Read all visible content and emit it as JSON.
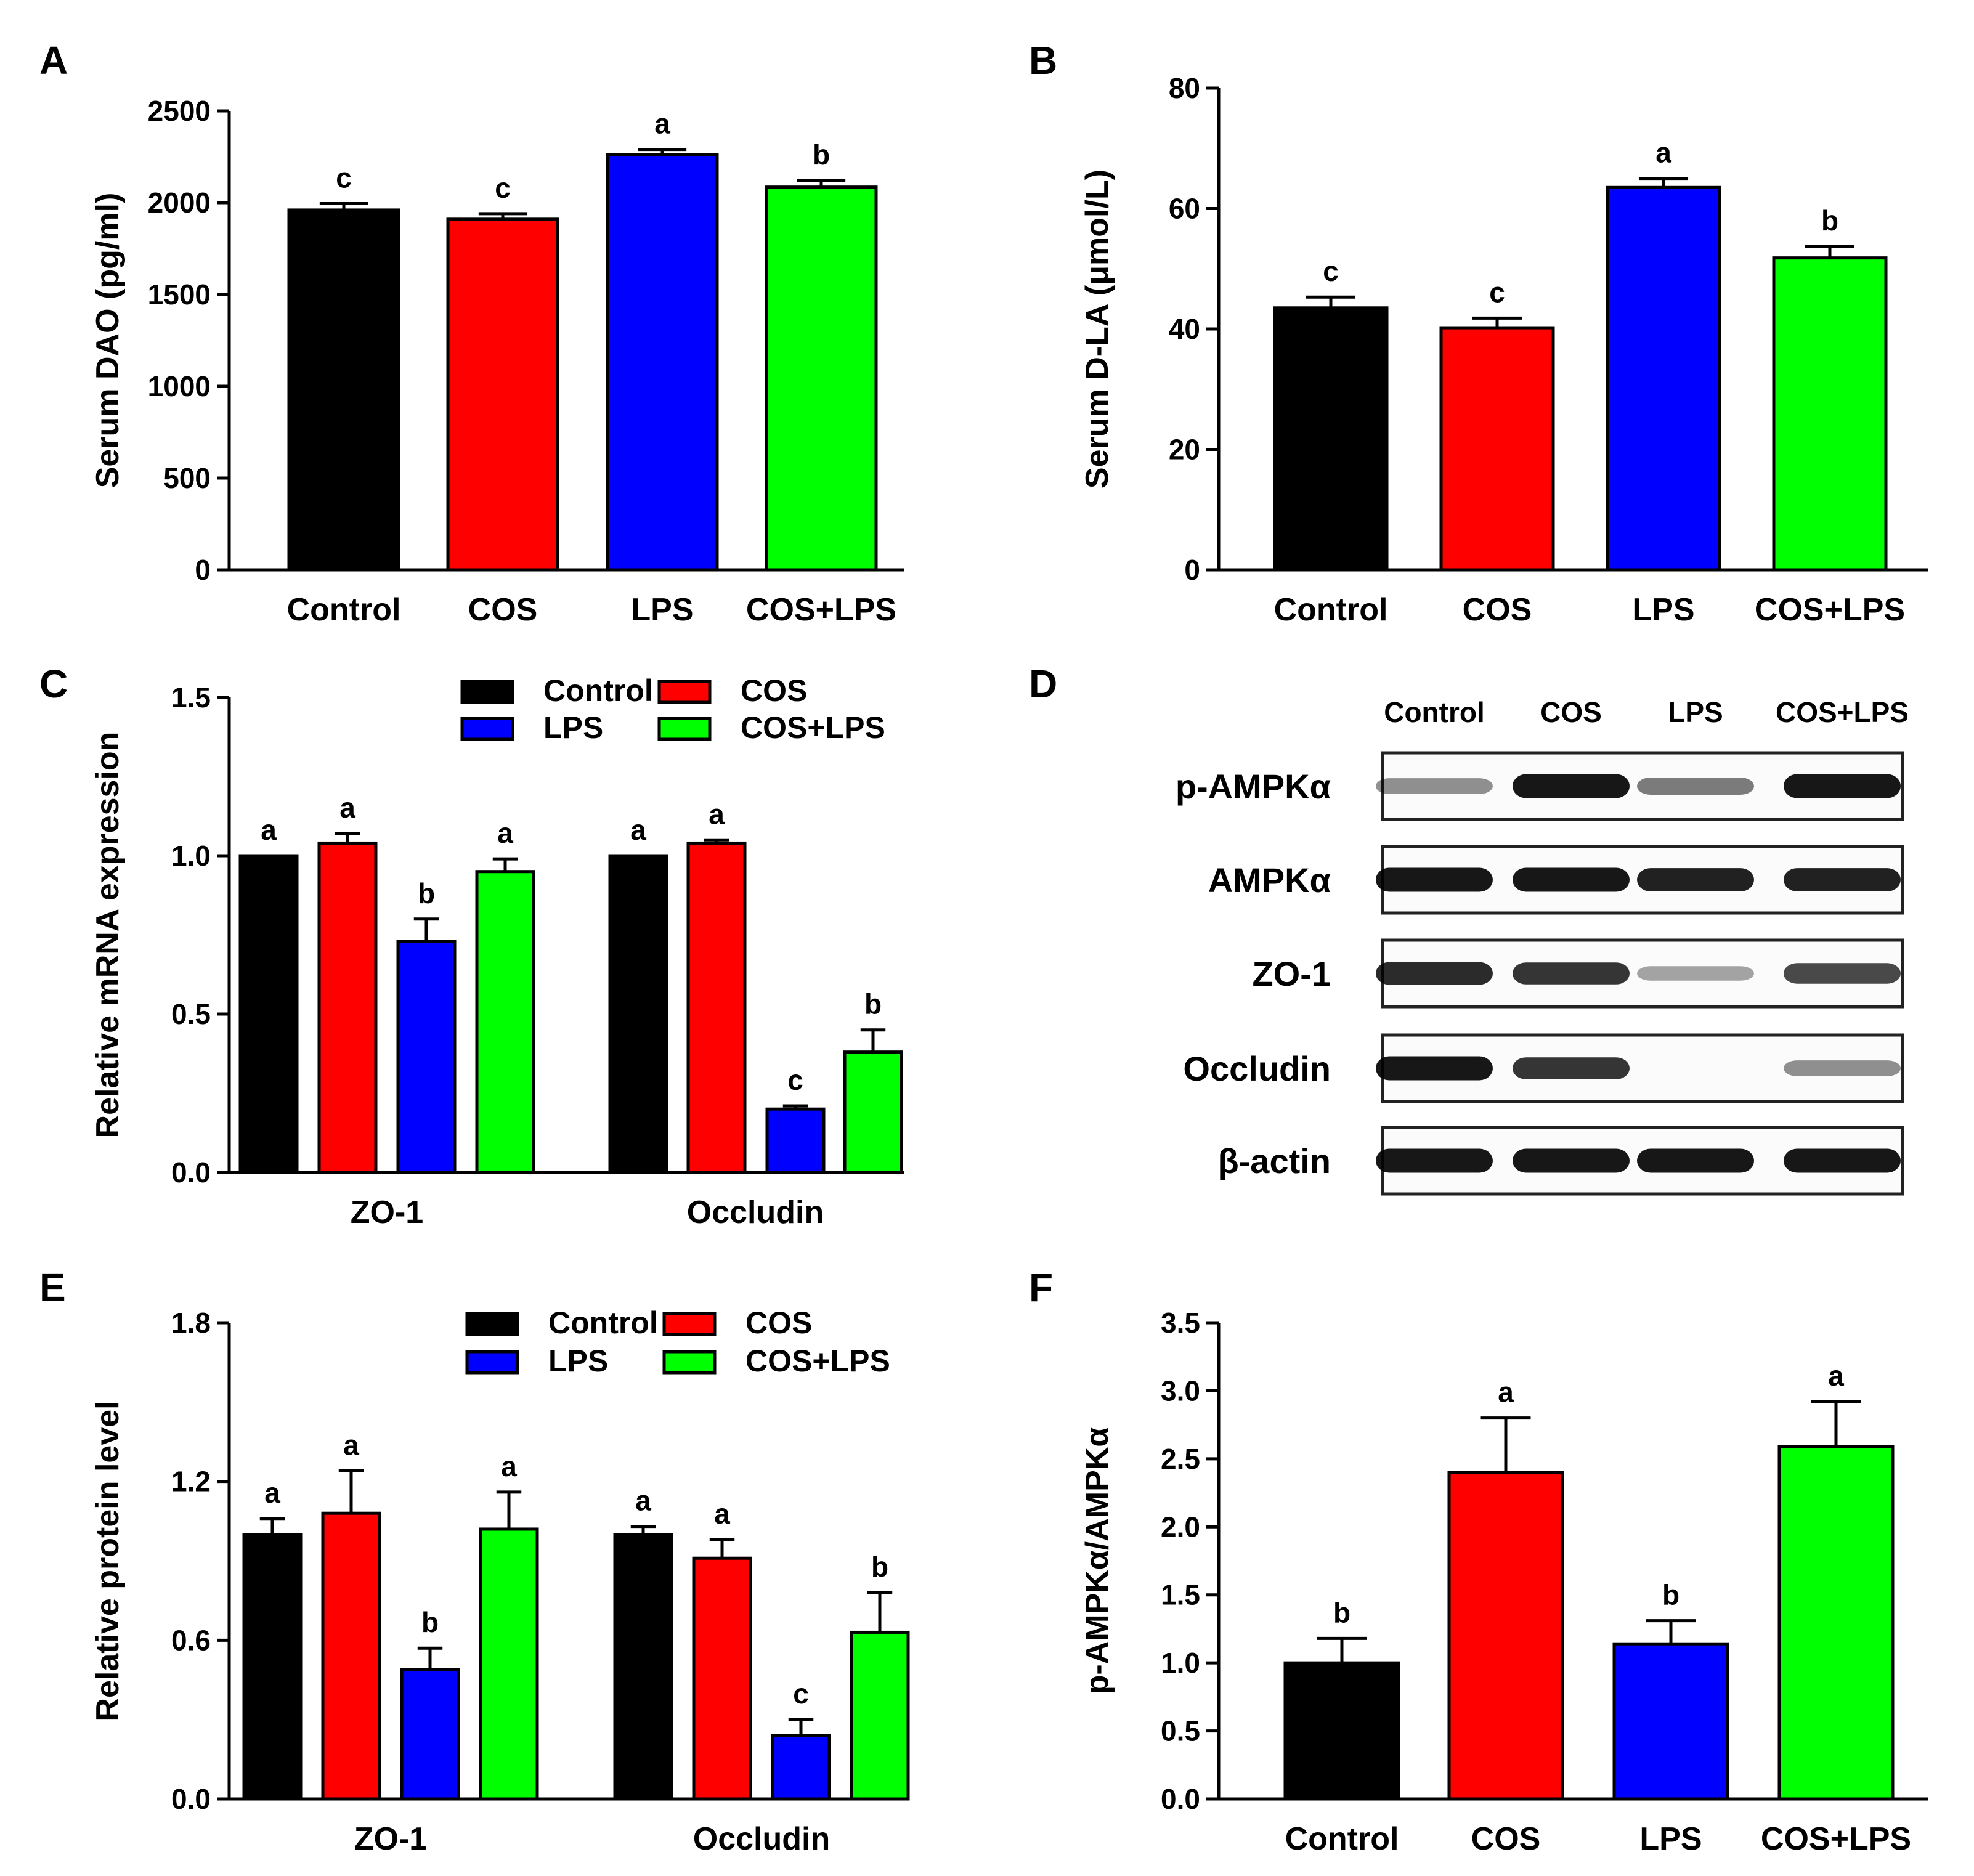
{
  "colors": {
    "Control": "#000000",
    "COS": "#ff0000",
    "LPS": "#0000ff",
    "COS+LPS": "#00ff00"
  },
  "chart_data": [
    {
      "id": "A",
      "type": "bar",
      "categories": [
        "Control",
        "COS",
        "LPS",
        "COS+LPS"
      ],
      "values": [
        1960,
        1910,
        2260,
        2085
      ],
      "errors": [
        35,
        30,
        30,
        35
      ],
      "significance": [
        "c",
        "c",
        "a",
        "b"
      ],
      "ylabel": "Serum DAO (pg/ml)",
      "ylim": [
        0,
        2500
      ],
      "yticks": [
        0,
        500,
        1000,
        1500,
        2000,
        2500
      ],
      "ytick_labels": [
        "0",
        "500",
        "1000",
        "1500",
        "2000",
        "2500"
      ]
    },
    {
      "id": "B",
      "type": "bar",
      "categories": [
        "Control",
        "COS",
        "LPS",
        "COS+LPS"
      ],
      "values": [
        43.5,
        40.2,
        63.5,
        51.8
      ],
      "errors": [
        1.8,
        1.6,
        1.5,
        1.9
      ],
      "significance": [
        "c",
        "c",
        "a",
        "b"
      ],
      "ylabel": "Serum D-LA (μmol/L)",
      "ylim": [
        0,
        80
      ],
      "yticks": [
        0,
        20,
        40,
        60,
        80
      ],
      "ytick_labels": [
        "0",
        "20",
        "40",
        "60",
        "80"
      ]
    },
    {
      "id": "C",
      "type": "bar",
      "groups": [
        "ZO-1",
        "Occludin"
      ],
      "series": [
        {
          "name": "Control",
          "values": [
            1.0,
            1.0
          ],
          "errors": [
            0.0,
            0.0
          ],
          "significance": [
            "a",
            "a"
          ]
        },
        {
          "name": "COS",
          "values": [
            1.04,
            1.04
          ],
          "errors": [
            0.03,
            0.01
          ],
          "significance": [
            "a",
            "a"
          ]
        },
        {
          "name": "LPS",
          "values": [
            0.73,
            0.2
          ],
          "errors": [
            0.07,
            0.01
          ],
          "significance": [
            "b",
            "c"
          ]
        },
        {
          "name": "COS+LPS",
          "values": [
            0.95,
            0.38
          ],
          "errors": [
            0.04,
            0.07
          ],
          "significance": [
            "a",
            "b"
          ]
        }
      ],
      "legend": [
        "Control",
        "COS",
        "LPS",
        "COS+LPS"
      ],
      "ylabel": "Relative mRNA expression",
      "ylim": [
        0,
        1.5
      ],
      "yticks": [
        0,
        0.5,
        1.0,
        1.5
      ],
      "ytick_labels": [
        "0.0",
        "0.5",
        "1.0",
        "1.5"
      ]
    },
    {
      "id": "E",
      "type": "bar",
      "groups": [
        "ZO-1",
        "Occludin"
      ],
      "series": [
        {
          "name": "Control",
          "values": [
            1.0,
            1.0
          ],
          "errors": [
            0.06,
            0.03
          ],
          "significance": [
            "a",
            "a"
          ]
        },
        {
          "name": "COS",
          "values": [
            1.08,
            0.91
          ],
          "errors": [
            0.16,
            0.07
          ],
          "significance": [
            "a",
            "a"
          ]
        },
        {
          "name": "LPS",
          "values": [
            0.49,
            0.24
          ],
          "errors": [
            0.08,
            0.06
          ],
          "significance": [
            "b",
            "c"
          ]
        },
        {
          "name": "COS+LPS",
          "values": [
            1.02,
            0.63
          ],
          "errors": [
            0.14,
            0.15
          ],
          "significance": [
            "a",
            "b"
          ]
        }
      ],
      "legend": [
        "Control",
        "COS",
        "LPS",
        "COS+LPS"
      ],
      "ylabel": "Relative protein level",
      "ylim": [
        0,
        1.8
      ],
      "yticks": [
        0,
        0.6,
        1.2,
        1.8
      ],
      "ytick_labels": [
        "0.0",
        "0.6",
        "1.2",
        "1.8"
      ]
    },
    {
      "id": "F",
      "type": "bar",
      "categories": [
        "Control",
        "COS",
        "LPS",
        "COS+LPS"
      ],
      "values": [
        1.0,
        2.4,
        1.14,
        2.59
      ],
      "errors": [
        0.18,
        0.4,
        0.17,
        0.33
      ],
      "significance": [
        "b",
        "a",
        "b",
        "a"
      ],
      "ylabel": "p-AMPKα/AMPKα",
      "ylim": [
        0,
        3.5
      ],
      "yticks": [
        0,
        0.5,
        1.0,
        1.5,
        2.0,
        2.5,
        3.0,
        3.5
      ],
      "ytick_labels": [
        "0.0",
        "0.5",
        "1.0",
        "1.5",
        "2.0",
        "2.5",
        "3.0",
        "3.5"
      ]
    }
  ],
  "western_blot": {
    "id": "D",
    "lanes": [
      "Control",
      "COS",
      "LPS",
      "COS+LPS"
    ],
    "rows": [
      {
        "label": "p-AMPKα",
        "intensity": [
          0.35,
          0.95,
          0.45,
          0.95
        ]
      },
      {
        "label": "AMPKα",
        "intensity": [
          0.95,
          0.95,
          0.9,
          0.9
        ]
      },
      {
        "label": "ZO-1",
        "intensity": [
          0.85,
          0.8,
          0.25,
          0.7
        ]
      },
      {
        "label": "Occludin",
        "intensity": [
          0.95,
          0.8,
          0.0,
          0.35
        ]
      },
      {
        "label": "β-actin",
        "intensity": [
          0.95,
          0.95,
          0.95,
          0.95
        ]
      }
    ]
  }
}
